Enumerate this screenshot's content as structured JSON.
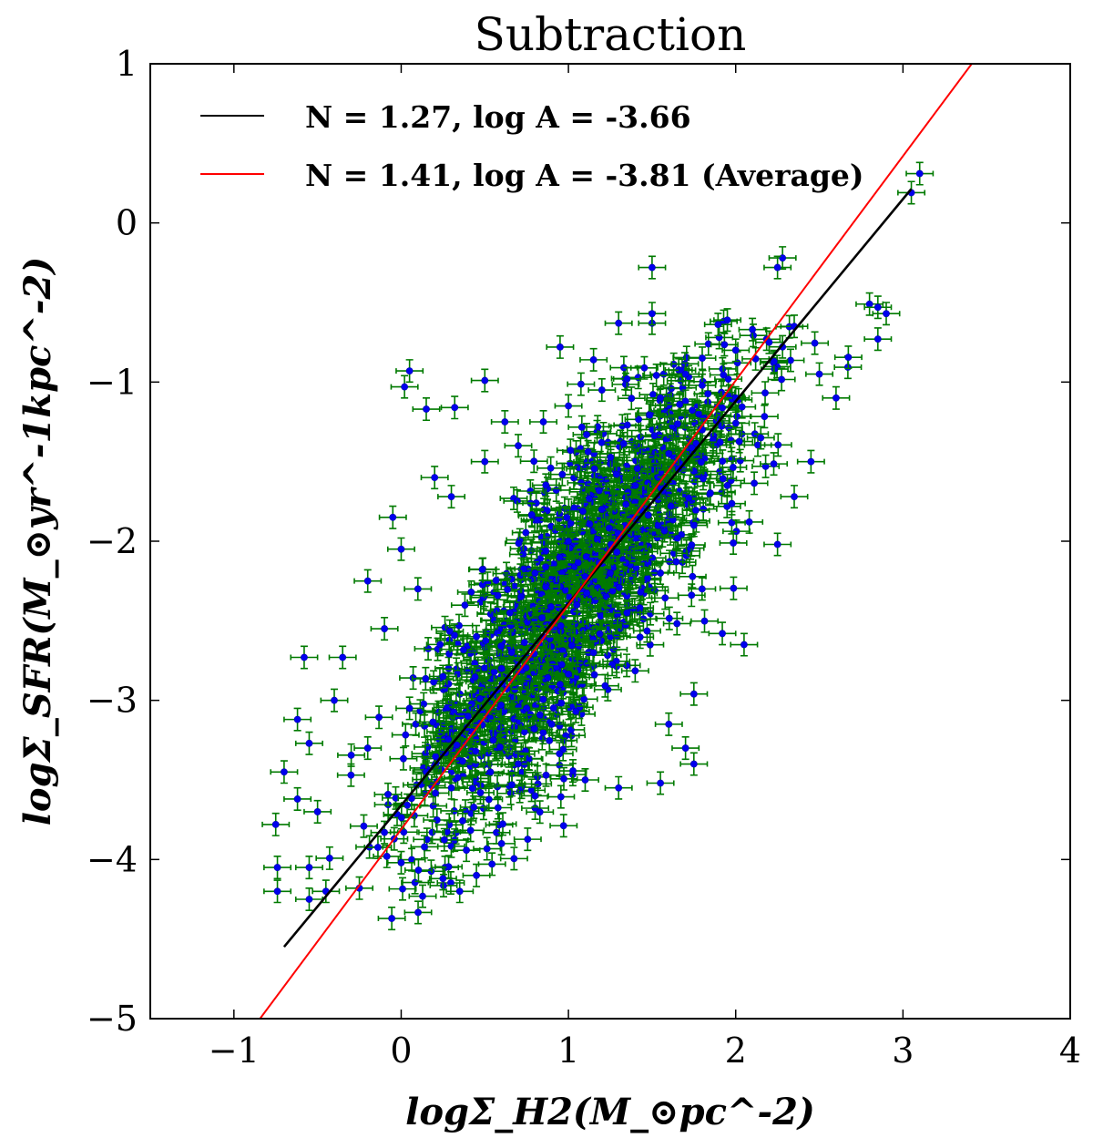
{
  "chart_data": {
    "type": "scatter",
    "title": "Subtraction",
    "xlabel": "logΣ_H2(M_⊙pc^-2)",
    "ylabel": "logΣ_SFR(M_⊙yr^-1kpc^-2)",
    "xlim": [
      -1.5,
      4
    ],
    "ylim": [
      -5,
      1
    ],
    "xticks": [
      -1,
      0,
      1,
      2,
      3,
      4
    ],
    "yticks": [
      -5,
      -4,
      -3,
      -2,
      -1,
      0,
      1
    ],
    "xtick_labels": [
      "−1",
      "0",
      "1",
      "2",
      "3",
      "4"
    ],
    "ytick_labels": [
      "−5",
      "−4",
      "−3",
      "−2",
      "−1",
      "0",
      "1"
    ],
    "legend_location": "top-left",
    "fits": [
      {
        "name": "fit",
        "label": "N = 1.27, log A = -3.66",
        "color": "#000000",
        "slope": 1.27,
        "intercept": -3.66,
        "x_range": [
          -0.7,
          3.05
        ]
      },
      {
        "name": "average",
        "label": "N = 1.41, log A = -3.81 (Average)",
        "color": "#ff0000",
        "slope": 1.41,
        "intercept": -3.81,
        "x_range": [
          -1.5,
          4
        ]
      }
    ],
    "points_series": {
      "name": "data",
      "marker_color": "#0000ee",
      "errorbar_color": "#007a00",
      "x_error": 0.08,
      "y_error": 0.07,
      "points": [
        [
          0.05,
          -0.93
        ],
        [
          0.02,
          -1.03
        ],
        [
          0.15,
          -1.17
        ],
        [
          0.32,
          -1.16
        ],
        [
          0.5,
          -0.99
        ],
        [
          0.62,
          -1.25
        ],
        [
          0.95,
          -0.78
        ],
        [
          1.15,
          -0.86
        ],
        [
          1.3,
          -0.63
        ],
        [
          1.5,
          -0.63
        ],
        [
          1.5,
          -0.57
        ],
        [
          1.5,
          -0.28
        ],
        [
          1.95,
          -0.61
        ],
        [
          2.1,
          -0.67
        ],
        [
          2.28,
          -0.22
        ],
        [
          2.25,
          -0.28
        ],
        [
          2.8,
          -0.51
        ],
        [
          2.85,
          -0.53
        ],
        [
          2.9,
          -0.57
        ],
        [
          2.85,
          -0.73
        ],
        [
          3.1,
          0.31
        ],
        [
          3.05,
          0.19
        ],
        [
          2.5,
          -0.95
        ],
        [
          2.6,
          -1.1
        ],
        [
          -0.74,
          -4.05
        ],
        [
          -0.74,
          -4.2
        ],
        [
          -0.55,
          -4.05
        ],
        [
          -0.55,
          -4.25
        ],
        [
          -0.45,
          -4.2
        ],
        [
          -0.75,
          -3.78
        ],
        [
          -0.7,
          -3.45
        ],
        [
          -0.62,
          -3.62
        ],
        [
          -0.5,
          -3.7
        ],
        [
          -0.58,
          -2.73
        ],
        [
          -0.62,
          -3.12
        ],
        [
          -0.55,
          -3.27
        ],
        [
          -0.35,
          -2.73
        ],
        [
          -0.4,
          -3.0
        ],
        [
          -0.3,
          -3.47
        ],
        [
          -0.1,
          -3.83
        ],
        [
          0.0,
          -4.02
        ],
        [
          -0.25,
          -4.18
        ],
        [
          0.25,
          -4.12
        ],
        [
          0.35,
          -4.2
        ],
        [
          0.45,
          -4.1
        ],
        [
          0.6,
          -3.9
        ],
        [
          0.8,
          -3.6
        ],
        [
          1.1,
          -3.5
        ],
        [
          1.3,
          -3.55
        ],
        [
          1.55,
          -3.52
        ],
        [
          1.7,
          -3.3
        ],
        [
          1.75,
          -3.4
        ],
        [
          1.6,
          -3.15
        ],
        [
          1.75,
          -2.96
        ],
        [
          1.92,
          -2.58
        ],
        [
          2.05,
          -2.65
        ],
        [
          2.25,
          -2.02
        ],
        [
          2.35,
          -1.72
        ],
        [
          2.45,
          -1.5
        ],
        [
          0.2,
          -1.6
        ],
        [
          -0.05,
          -1.85
        ],
        [
          0.3,
          -1.72
        ],
        [
          0.0,
          -2.05
        ],
        [
          -0.2,
          -2.25
        ],
        [
          -0.1,
          -2.55
        ],
        [
          0.1,
          -2.3
        ],
        [
          0.5,
          -1.5
        ],
        [
          0.7,
          -1.4
        ],
        [
          0.85,
          -1.25
        ],
        [
          1.0,
          -1.15
        ],
        [
          1.2,
          -1.05
        ],
        [
          1.35,
          -0.98
        ],
        [
          1.55,
          -1.1
        ],
        [
          1.7,
          -0.95
        ],
        [
          1.8,
          -0.85
        ],
        [
          2.0,
          -0.8
        ],
        [
          2.2,
          -0.75
        ],
        [
          2.35,
          -0.65
        ],
        [
          0.4,
          -3.1
        ],
        [
          0.25,
          -2.85
        ],
        [
          0.55,
          -3.25
        ],
        [
          0.7,
          -3.4
        ],
        [
          0.9,
          -3.15
        ],
        [
          0.3,
          -3.55
        ],
        [
          0.15,
          -3.45
        ],
        [
          -0.2,
          -3.3
        ],
        [
          0.05,
          -3.05
        ],
        [
          0.45,
          -2.6
        ],
        [
          0.65,
          -2.45
        ],
        [
          0.8,
          -2.2
        ],
        [
          1.0,
          -2.0
        ],
        [
          1.2,
          -1.8
        ],
        [
          1.4,
          -1.65
        ],
        [
          1.6,
          -1.45
        ],
        [
          1.8,
          -1.3
        ],
        [
          2.0,
          -1.1
        ],
        [
          2.15,
          -1.35
        ],
        [
          1.95,
          -1.65
        ],
        [
          1.75,
          -1.9
        ],
        [
          1.55,
          -2.2
        ],
        [
          1.35,
          -2.45
        ],
        [
          1.15,
          -2.7
        ],
        [
          0.95,
          -2.9
        ],
        [
          0.75,
          -3.05
        ],
        [
          1.05,
          -2.4
        ],
        [
          1.25,
          -2.2
        ],
        [
          0.85,
          -2.6
        ],
        [
          0.6,
          -2.8
        ]
      ]
    },
    "cloud_seed": 7,
    "cloud_count": 1400
  }
}
